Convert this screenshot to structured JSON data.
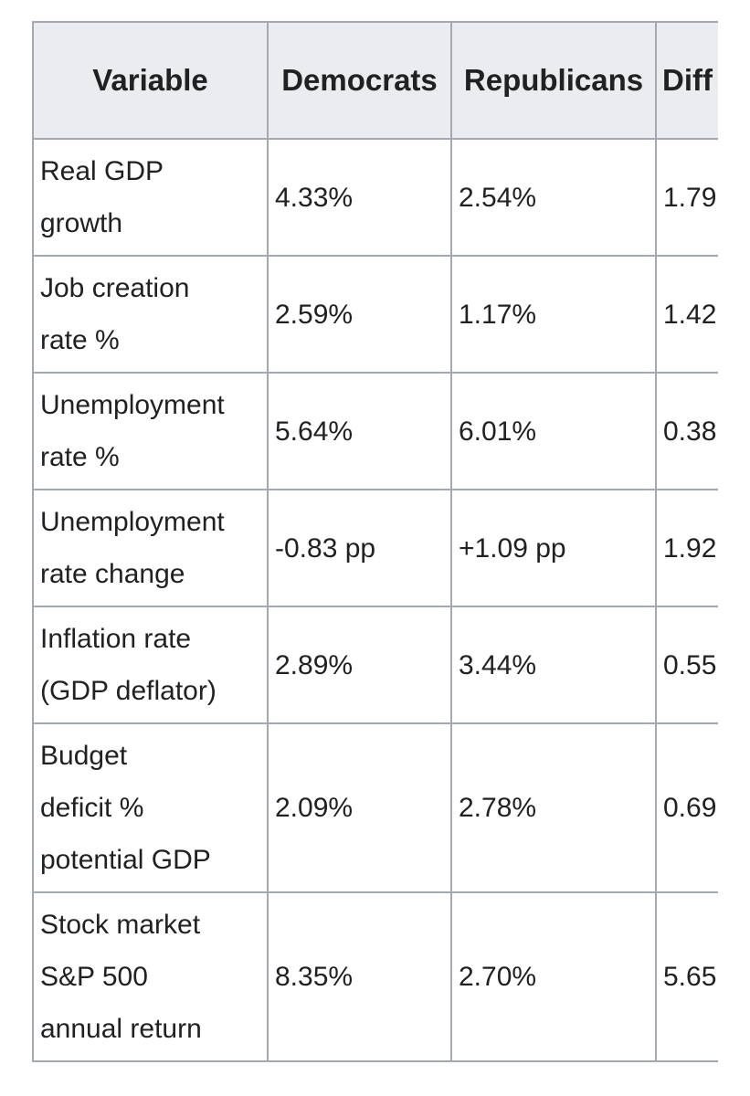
{
  "table": {
    "headers": [
      "Variable",
      "Democrats",
      "Republicans",
      "Diff"
    ],
    "rows": [
      {
        "variable": [
          "Real GDP",
          "growth"
        ],
        "democrats": "4.33%",
        "republicans": "2.54%",
        "difference": "1.79"
      },
      {
        "variable": [
          "Job creation",
          "rate %"
        ],
        "democrats": "2.59%",
        "republicans": "1.17%",
        "difference": "1.42"
      },
      {
        "variable": [
          "Unemployment",
          "rate %"
        ],
        "democrats": "5.64%",
        "republicans": "6.01%",
        "difference": "0.38"
      },
      {
        "variable": [
          "Unemployment",
          "rate change"
        ],
        "democrats": "-0.83 pp",
        "republicans": "+1.09 pp",
        "difference": "1.92"
      },
      {
        "variable": [
          "Inflation rate",
          "(GDP deflator)"
        ],
        "democrats": "2.89%",
        "republicans": "3.44%",
        "difference": "0.55"
      },
      {
        "variable": [
          "Budget",
          "deficit %",
          "potential GDP"
        ],
        "democrats": "2.09%",
        "republicans": "2.78%",
        "difference": "0.69"
      },
      {
        "variable": [
          "Stock market",
          "S&P 500",
          "annual return"
        ],
        "democrats": "8.35%",
        "republicans": "2.70%",
        "difference": "5.65"
      }
    ]
  }
}
